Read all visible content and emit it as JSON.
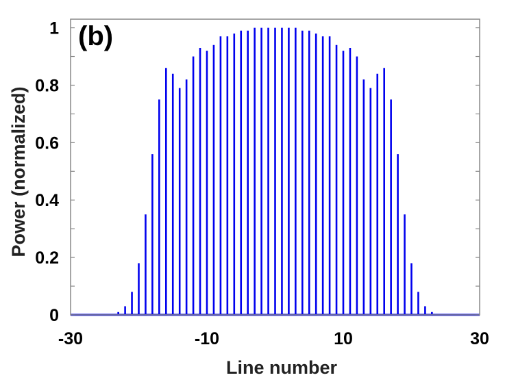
{
  "chart_data": {
    "type": "stem",
    "panel_label": "(b)",
    "xlabel": "Line number",
    "ylabel": "Power (normalized)",
    "xlim": [
      -30,
      30
    ],
    "ylim": [
      0,
      1.03
    ],
    "xticks": [
      -30,
      -10,
      10,
      30
    ],
    "xtick_labels": [
      "-30",
      "-10",
      "10",
      "30"
    ],
    "yticks": [
      0,
      0.2,
      0.4,
      0.6,
      0.8,
      1
    ],
    "ytick_labels": [
      "0",
      "0.2",
      "0.4",
      "0.6",
      "0.8",
      "1"
    ],
    "grid": false,
    "color": "#0000ee",
    "x": [
      -23,
      -22,
      -21,
      -20,
      -19,
      -18,
      -17,
      -16,
      -15,
      -14,
      -13,
      -12,
      -11,
      -10,
      -9,
      -8,
      -7,
      -6,
      -5,
      -4,
      -3,
      -2,
      -1,
      0,
      1,
      2,
      3,
      4,
      5,
      6,
      7,
      8,
      9,
      10,
      11,
      12,
      13,
      14,
      15,
      16,
      17,
      18,
      19,
      20,
      21,
      22,
      23
    ],
    "y": [
      0.01,
      0.03,
      0.08,
      0.18,
      0.35,
      0.56,
      0.75,
      0.86,
      0.84,
      0.79,
      0.82,
      0.9,
      0.93,
      0.92,
      0.94,
      0.97,
      0.97,
      0.98,
      0.99,
      0.99,
      1.0,
      1.0,
      1.0,
      1.0,
      1.0,
      1.0,
      1.0,
      0.99,
      0.99,
      0.98,
      0.97,
      0.97,
      0.94,
      0.92,
      0.93,
      0.9,
      0.82,
      0.79,
      0.84,
      0.86,
      0.75,
      0.56,
      0.35,
      0.18,
      0.08,
      0.03,
      0.01
    ]
  }
}
